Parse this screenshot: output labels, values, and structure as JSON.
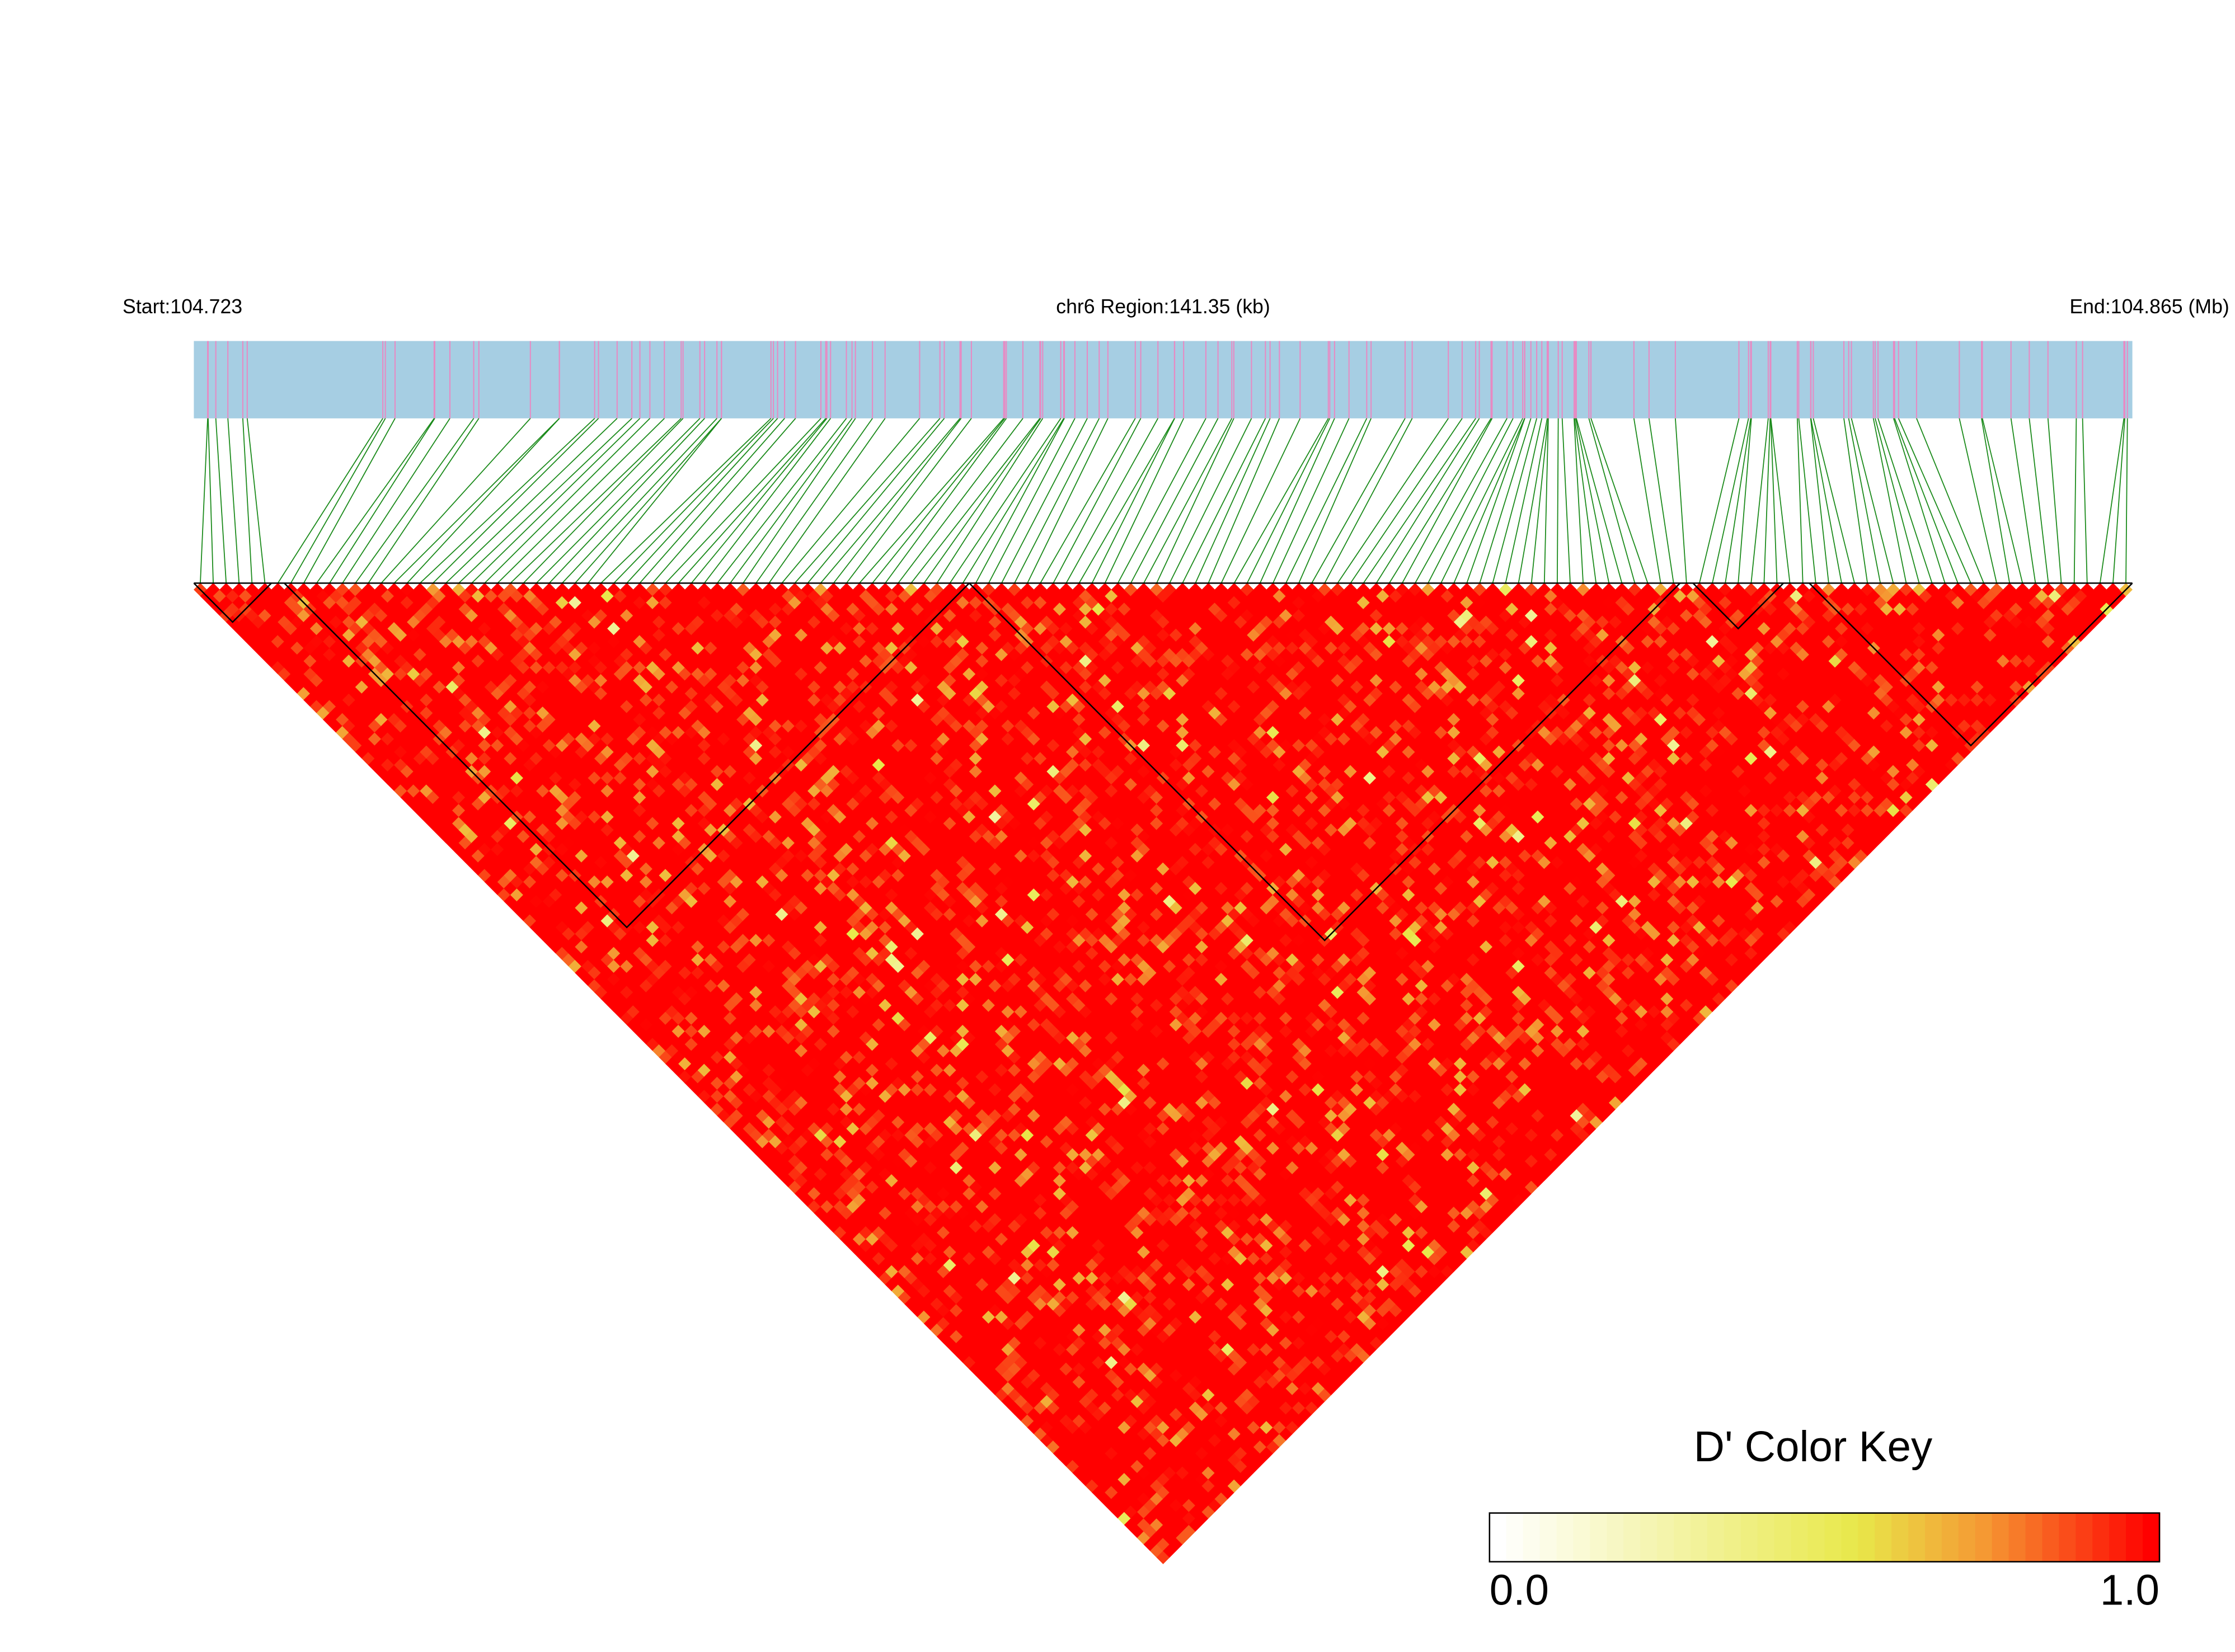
{
  "chart_data": {
    "type": "ld-heatmap",
    "start_label": "Start:104.723",
    "title": "chr6 Region:141.35 (kb)",
    "end_label": "End:104.865 (Mb)",
    "colorbar_title": "D' Color Key",
    "clim": [
      0,
      1
    ],
    "colorbar_ticks": [
      {
        "value": 0,
        "label": "0.0"
      },
      {
        "value": 1,
        "label": "1.0"
      }
    ]
  }
}
